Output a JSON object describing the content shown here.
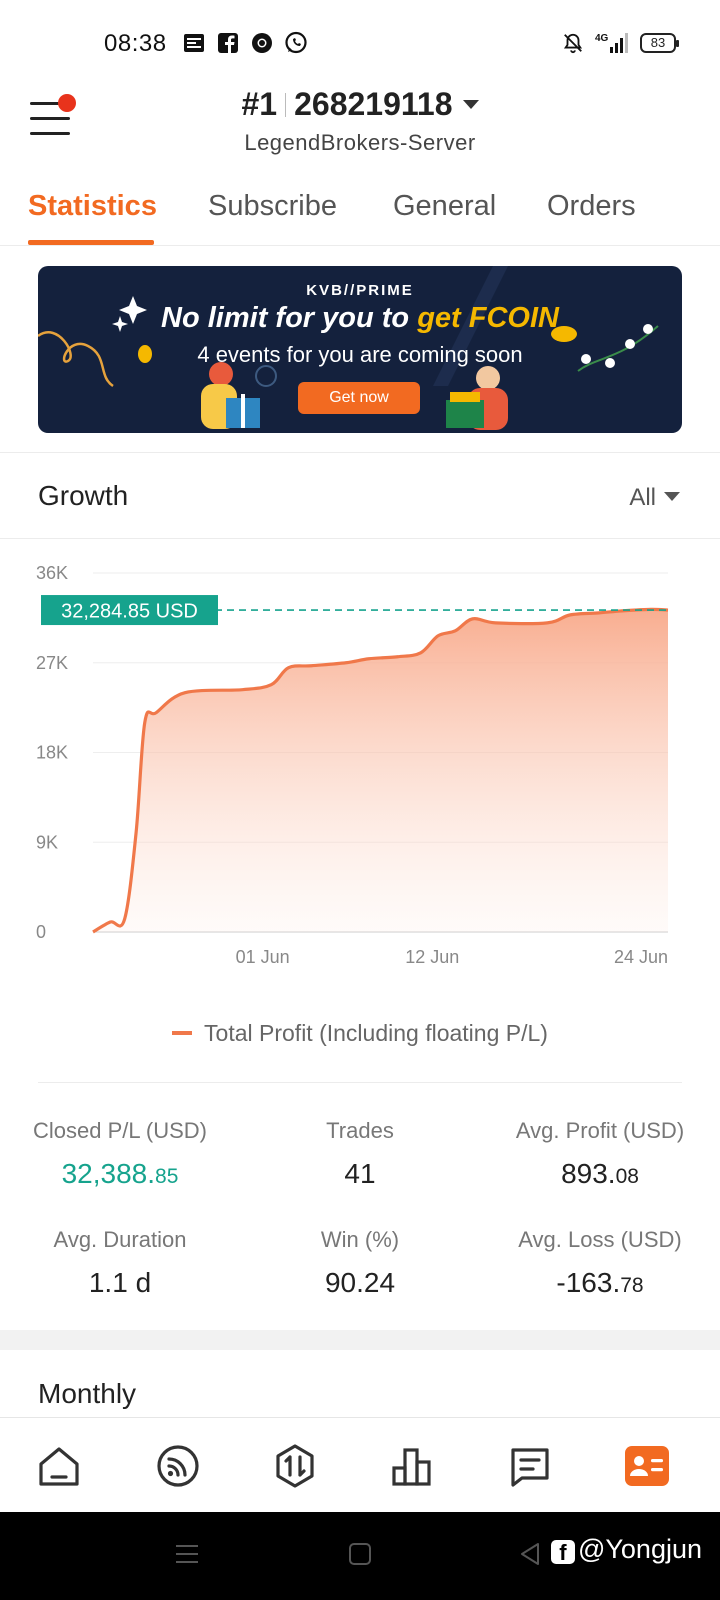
{
  "status_bar": {
    "time": "08:38",
    "left_icons": [
      "news-icon",
      "facebook-icon",
      "chrome-icon",
      "whatsapp-icon"
    ],
    "right_icons": [
      "bell-off-icon",
      "signal-4g-icon",
      "battery-icon"
    ],
    "network": "4G",
    "battery_level": "83"
  },
  "header": {
    "account_rank": "#1",
    "account_number": "268219118",
    "server": "LegendBrokers-Server"
  },
  "tabs": [
    {
      "label": "Statistics",
      "active": true
    },
    {
      "label": "Subscribe",
      "active": false
    },
    {
      "label": "General",
      "active": false
    },
    {
      "label": "Orders",
      "active": false
    }
  ],
  "banner": {
    "brand": "KVB//PRIME",
    "headline_prefix": "No limit for you to ",
    "headline_highlight": "get FCOIN",
    "subtitle": "4 events for you are coming soon",
    "cta": "Get now"
  },
  "growth": {
    "title": "Growth",
    "filter": "All"
  },
  "chart_data": {
    "type": "area",
    "y_ticks": [
      "36K",
      "27K",
      "18K",
      "9K",
      "0"
    ],
    "x_ticks": [
      "01 Jun",
      "12 Jun",
      "24 Jun"
    ],
    "ylim": [
      0,
      36000
    ],
    "current_value_label": "32,284.85 USD",
    "current_value": 32284.85,
    "series": [
      {
        "name": "Total Profit (Including floating P/L)",
        "color": "#f0784a",
        "points": [
          [
            0.0,
            0
          ],
          [
            0.03,
            1000
          ],
          [
            0.055,
            1300
          ],
          [
            0.075,
            10000
          ],
          [
            0.09,
            21000
          ],
          [
            0.11,
            22000
          ],
          [
            0.16,
            24000
          ],
          [
            0.26,
            24300
          ],
          [
            0.31,
            24800
          ],
          [
            0.34,
            26500
          ],
          [
            0.38,
            26700
          ],
          [
            0.44,
            27000
          ],
          [
            0.48,
            27400
          ],
          [
            0.53,
            27600
          ],
          [
            0.57,
            28000
          ],
          [
            0.6,
            29700
          ],
          [
            0.63,
            30200
          ],
          [
            0.66,
            31400
          ],
          [
            0.7,
            31000
          ],
          [
            0.79,
            31000
          ],
          [
            0.83,
            31800
          ],
          [
            0.88,
            32000
          ],
          [
            0.92,
            32200
          ],
          [
            0.97,
            32350
          ],
          [
            1.0,
            32284.85
          ]
        ]
      }
    ],
    "grid": true
  },
  "legend": {
    "label": "Total Profit (Including floating P/L)"
  },
  "stats": {
    "closed_pl": {
      "label": "Closed P/L (USD)",
      "int": "32,388.",
      "dec": "85"
    },
    "trades": {
      "label": "Trades",
      "value": "41"
    },
    "avg_profit": {
      "label": "Avg. Profit (USD)",
      "int": "893.",
      "dec": "08"
    },
    "avg_duration": {
      "label": "Avg. Duration",
      "value": "1.1 d"
    },
    "win": {
      "label": "Win (%)",
      "value": "90.24"
    },
    "avg_loss": {
      "label": "Avg. Loss (USD)",
      "int": "-163.",
      "dec": "78"
    }
  },
  "monthly": {
    "title": "Monthly"
  },
  "bottom_nav": {
    "items": [
      "home-icon",
      "signal-feed-icon",
      "trade-icon",
      "chart-icon",
      "messages-icon",
      "profile-card-icon"
    ],
    "active_index": 5,
    "accent": "#f26a21"
  },
  "system": {
    "watermark": "@Yongjun"
  }
}
